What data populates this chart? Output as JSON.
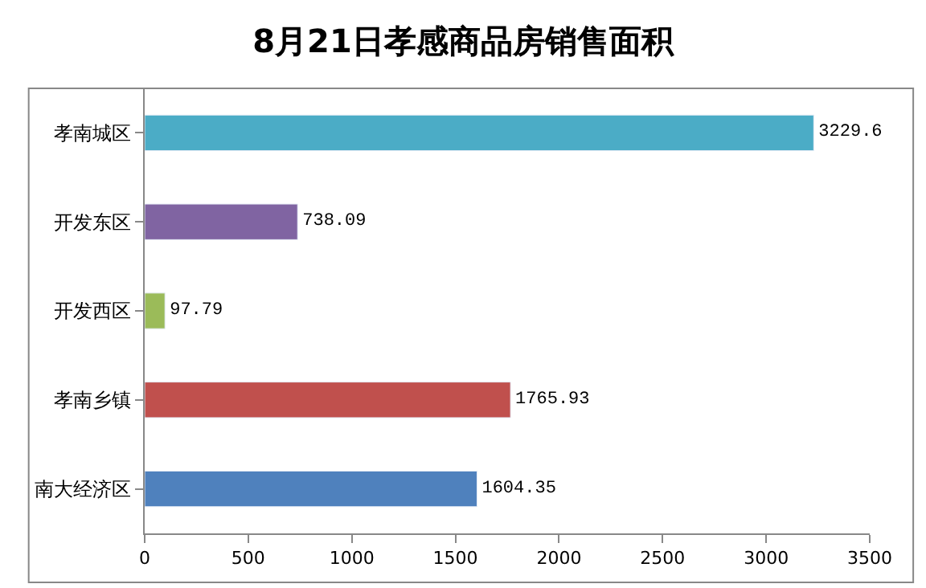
{
  "chart_data": {
    "type": "bar",
    "orientation": "horizontal",
    "title": "8月21日孝感商品房销售面积",
    "categories": [
      "孝南城区",
      "开发东区",
      "开发西区",
      "孝南乡镇",
      "南大经济区"
    ],
    "values": [
      3229.6,
      738.09,
      97.79,
      1765.93,
      1604.35
    ],
    "colors": [
      "#4bacc6",
      "#8064a2",
      "#9bbb59",
      "#c0504d",
      "#4f81bd"
    ],
    "xlim": [
      0,
      3500
    ],
    "xticks": [
      0,
      500,
      1000,
      1500,
      2000,
      2500,
      3000,
      3500
    ],
    "data_labels": true,
    "grid": false,
    "legend": false
  }
}
